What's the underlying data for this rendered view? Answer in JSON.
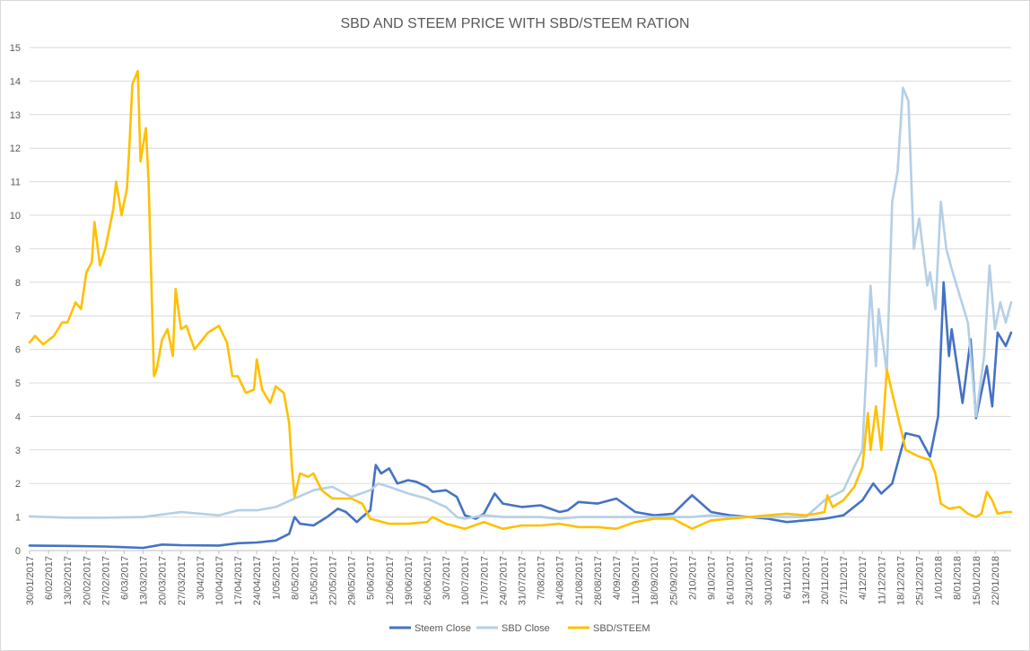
{
  "chart_data": {
    "type": "line",
    "title": "SBD AND STEEM PRICE WITH SBD/STEEM RATION",
    "xlabel": "",
    "ylabel": "",
    "ylim": [
      0,
      15
    ],
    "yticks": [
      0,
      1,
      2,
      3,
      4,
      5,
      6,
      7,
      8,
      9,
      10,
      11,
      12,
      13,
      14,
      15
    ],
    "xlim": [
      "30/01/2017",
      "28/01/2018"
    ],
    "xtick_labels": [
      "30/01/2017",
      "6/02/2017",
      "13/02/2017",
      "20/02/2017",
      "27/02/2017",
      "6/03/2017",
      "13/03/2017",
      "20/03/2017",
      "27/03/2017",
      "3/04/2017",
      "10/04/2017",
      "17/04/2017",
      "24/04/2017",
      "1/05/2017",
      "8/05/2017",
      "15/05/2017",
      "22/05/2017",
      "29/05/2017",
      "5/06/2017",
      "12/06/2017",
      "19/06/2017",
      "26/06/2017",
      "3/07/2017",
      "10/07/2017",
      "17/07/2017",
      "24/07/2017",
      "31/07/2017",
      "7/08/2017",
      "14/08/2017",
      "21/08/2017",
      "28/08/2017",
      "4/09/2017",
      "11/09/2017",
      "18/09/2017",
      "25/09/2017",
      "2/10/2017",
      "9/10/2017",
      "16/10/2017",
      "23/10/2017",
      "30/10/2017",
      "6/11/2017",
      "13/11/2017",
      "20/11/2017",
      "27/11/2017",
      "4/12/2017",
      "11/12/2017",
      "18/12/2017",
      "25/12/2017",
      "1/01/2018",
      "8/01/2018",
      "15/01/2018",
      "22/01/2018"
    ],
    "grid": true,
    "legend_position": "bottom",
    "series": [
      {
        "name": "Steem Close",
        "color": "#4472c4",
        "points": [
          [
            "30/01/2017",
            0.15
          ],
          [
            "13/02/2017",
            0.14
          ],
          [
            "27/02/2017",
            0.12
          ],
          [
            "13/03/2017",
            0.08
          ],
          [
            "20/03/2017",
            0.18
          ],
          [
            "27/03/2017",
            0.16
          ],
          [
            "10/04/2017",
            0.15
          ],
          [
            "17/04/2017",
            0.22
          ],
          [
            "24/04/2017",
            0.24
          ],
          [
            "1/05/2017",
            0.3
          ],
          [
            "6/05/2017",
            0.5
          ],
          [
            "8/05/2017",
            1.0
          ],
          [
            "10/05/2017",
            0.8
          ],
          [
            "15/05/2017",
            0.75
          ],
          [
            "20/05/2017",
            1.0
          ],
          [
            "24/05/2017",
            1.25
          ],
          [
            "27/05/2017",
            1.15
          ],
          [
            "31/05/2017",
            0.85
          ],
          [
            "2/06/2017",
            1.0
          ],
          [
            "5/06/2017",
            1.2
          ],
          [
            "7/06/2017",
            2.55
          ],
          [
            "9/06/2017",
            2.3
          ],
          [
            "12/06/2017",
            2.45
          ],
          [
            "15/06/2017",
            2.0
          ],
          [
            "19/06/2017",
            2.1
          ],
          [
            "22/06/2017",
            2.05
          ],
          [
            "26/06/2017",
            1.9
          ],
          [
            "28/06/2017",
            1.75
          ],
          [
            "3/07/2017",
            1.8
          ],
          [
            "7/07/2017",
            1.6
          ],
          [
            "10/07/2017",
            1.05
          ],
          [
            "14/07/2017",
            0.95
          ],
          [
            "17/07/2017",
            1.1
          ],
          [
            "21/07/2017",
            1.7
          ],
          [
            "24/07/2017",
            1.4
          ],
          [
            "31/07/2017",
            1.3
          ],
          [
            "7/08/2017",
            1.35
          ],
          [
            "14/08/2017",
            1.15
          ],
          [
            "17/08/2017",
            1.2
          ],
          [
            "21/08/2017",
            1.45
          ],
          [
            "28/08/2017",
            1.4
          ],
          [
            "4/09/2017",
            1.55
          ],
          [
            "11/09/2017",
            1.15
          ],
          [
            "18/09/2017",
            1.05
          ],
          [
            "25/09/2017",
            1.1
          ],
          [
            "2/10/2017",
            1.65
          ],
          [
            "9/10/2017",
            1.15
          ],
          [
            "16/10/2017",
            1.05
          ],
          [
            "23/10/2017",
            1.0
          ],
          [
            "30/10/2017",
            0.95
          ],
          [
            "6/11/2017",
            0.85
          ],
          [
            "13/11/2017",
            0.9
          ],
          [
            "20/11/2017",
            0.95
          ],
          [
            "27/11/2017",
            1.05
          ],
          [
            "4/12/2017",
            1.5
          ],
          [
            "8/12/2017",
            2.0
          ],
          [
            "11/12/2017",
            1.7
          ],
          [
            "15/12/2017",
            2.0
          ],
          [
            "20/12/2017",
            3.5
          ],
          [
            "25/12/2017",
            3.4
          ],
          [
            "29/12/2017",
            2.8
          ],
          [
            "1/01/2018",
            4.0
          ],
          [
            "3/01/2018",
            8.0
          ],
          [
            "5/01/2018",
            5.8
          ],
          [
            "6/01/2018",
            6.6
          ],
          [
            "10/01/2018",
            4.4
          ],
          [
            "13/01/2018",
            6.3
          ],
          [
            "15/01/2018",
            3.95
          ],
          [
            "19/01/2018",
            5.5
          ],
          [
            "21/01/2018",
            4.3
          ],
          [
            "23/01/2018",
            6.5
          ],
          [
            "26/01/2018",
            6.1
          ],
          [
            "28/01/2018",
            6.5
          ]
        ]
      },
      {
        "name": "SBD Close",
        "color": "#b4cfe6",
        "points": [
          [
            "30/01/2017",
            1.02
          ],
          [
            "13/02/2017",
            0.98
          ],
          [
            "27/02/2017",
            0.98
          ],
          [
            "13/03/2017",
            1.0
          ],
          [
            "27/03/2017",
            1.15
          ],
          [
            "10/04/2017",
            1.05
          ],
          [
            "17/04/2017",
            1.2
          ],
          [
            "24/04/2017",
            1.2
          ],
          [
            "1/05/2017",
            1.3
          ],
          [
            "8/05/2017",
            1.55
          ],
          [
            "15/05/2017",
            1.8
          ],
          [
            "22/05/2017",
            1.9
          ],
          [
            "29/05/2017",
            1.6
          ],
          [
            "5/06/2017",
            1.8
          ],
          [
            "8/06/2017",
            2.0
          ],
          [
            "12/06/2017",
            1.9
          ],
          [
            "19/06/2017",
            1.7
          ],
          [
            "26/06/2017",
            1.55
          ],
          [
            "3/07/2017",
            1.3
          ],
          [
            "7/07/2017",
            1.0
          ],
          [
            "10/07/2017",
            0.95
          ],
          [
            "17/07/2017",
            1.05
          ],
          [
            "24/07/2017",
            1.0
          ],
          [
            "31/07/2017",
            1.0
          ],
          [
            "7/08/2017",
            1.0
          ],
          [
            "14/08/2017",
            0.95
          ],
          [
            "21/08/2017",
            1.0
          ],
          [
            "28/08/2017",
            1.0
          ],
          [
            "4/09/2017",
            1.0
          ],
          [
            "11/09/2017",
            1.0
          ],
          [
            "18/09/2017",
            1.0
          ],
          [
            "25/09/2017",
            1.0
          ],
          [
            "2/10/2017",
            1.0
          ],
          [
            "9/10/2017",
            1.05
          ],
          [
            "16/10/2017",
            1.0
          ],
          [
            "23/10/2017",
            1.0
          ],
          [
            "30/10/2017",
            1.0
          ],
          [
            "6/11/2017",
            1.0
          ],
          [
            "13/11/2017",
            1.0
          ],
          [
            "20/11/2017",
            1.5
          ],
          [
            "27/11/2017",
            1.8
          ],
          [
            "1/12/2017",
            2.5
          ],
          [
            "4/12/2017",
            3.0
          ],
          [
            "7/12/2017",
            7.9
          ],
          [
            "9/12/2017",
            5.5
          ],
          [
            "10/12/2017",
            7.2
          ],
          [
            "13/12/2017",
            5.3
          ],
          [
            "15/12/2017",
            10.4
          ],
          [
            "17/12/2017",
            11.3
          ],
          [
            "19/12/2017",
            13.8
          ],
          [
            "21/12/2017",
            13.4
          ],
          [
            "23/12/2017",
            9.0
          ],
          [
            "25/12/2017",
            9.9
          ],
          [
            "28/12/2017",
            7.9
          ],
          [
            "29/12/2017",
            8.3
          ],
          [
            "31/12/2017",
            7.2
          ],
          [
            "2/01/2018",
            10.4
          ],
          [
            "4/01/2018",
            9.0
          ],
          [
            "6/01/2018",
            8.4
          ],
          [
            "9/01/2018",
            7.6
          ],
          [
            "12/01/2018",
            6.8
          ],
          [
            "15/01/2018",
            4.0
          ],
          [
            "18/01/2018",
            5.8
          ],
          [
            "20/01/2018",
            8.5
          ],
          [
            "22/01/2018",
            6.6
          ],
          [
            "24/01/2018",
            7.4
          ],
          [
            "26/01/2018",
            6.8
          ],
          [
            "28/01/2018",
            7.4
          ]
        ]
      },
      {
        "name": "SBD/STEEM",
        "color": "#ffc000",
        "points": [
          [
            "30/01/2017",
            6.2
          ],
          [
            "1/02/2017",
            6.4
          ],
          [
            "4/02/2017",
            6.15
          ],
          [
            "8/02/2017",
            6.4
          ],
          [
            "11/02/2017",
            6.8
          ],
          [
            "13/02/2017",
            6.8
          ],
          [
            "16/02/2017",
            7.4
          ],
          [
            "18/02/2017",
            7.2
          ],
          [
            "20/02/2017",
            8.3
          ],
          [
            "22/02/2017",
            8.6
          ],
          [
            "23/02/2017",
            9.8
          ],
          [
            "25/02/2017",
            8.5
          ],
          [
            "27/02/2017",
            9.0
          ],
          [
            "2/03/2017",
            10.2
          ],
          [
            "3/03/2017",
            11.0
          ],
          [
            "5/03/2017",
            10.0
          ],
          [
            "7/03/2017",
            10.8
          ],
          [
            "8/03/2017",
            12.2
          ],
          [
            "9/03/2017",
            13.9
          ],
          [
            "11/03/2017",
            14.3
          ],
          [
            "12/03/2017",
            11.6
          ],
          [
            "14/03/2017",
            12.6
          ],
          [
            "15/03/2017",
            11.0
          ],
          [
            "17/03/2017",
            5.2
          ],
          [
            "18/03/2017",
            5.4
          ],
          [
            "20/03/2017",
            6.3
          ],
          [
            "22/03/2017",
            6.6
          ],
          [
            "24/03/2017",
            5.8
          ],
          [
            "25/03/2017",
            7.8
          ],
          [
            "27/03/2017",
            6.6
          ],
          [
            "29/03/2017",
            6.7
          ],
          [
            "1/04/2017",
            6.0
          ],
          [
            "3/04/2017",
            6.2
          ],
          [
            "6/04/2017",
            6.5
          ],
          [
            "10/04/2017",
            6.7
          ],
          [
            "13/04/2017",
            6.2
          ],
          [
            "15/04/2017",
            5.2
          ],
          [
            "17/04/2017",
            5.2
          ],
          [
            "20/04/2017",
            4.7
          ],
          [
            "23/04/2017",
            4.8
          ],
          [
            "24/04/2017",
            5.7
          ],
          [
            "26/04/2017",
            4.8
          ],
          [
            "29/04/2017",
            4.4
          ],
          [
            "1/05/2017",
            4.9
          ],
          [
            "4/05/2017",
            4.7
          ],
          [
            "6/05/2017",
            3.8
          ],
          [
            "7/05/2017",
            2.5
          ],
          [
            "8/05/2017",
            1.6
          ],
          [
            "10/05/2017",
            2.3
          ],
          [
            "13/05/2017",
            2.2
          ],
          [
            "15/05/2017",
            2.3
          ],
          [
            "18/05/2017",
            1.8
          ],
          [
            "22/05/2017",
            1.55
          ],
          [
            "29/05/2017",
            1.55
          ],
          [
            "2/06/2017",
            1.4
          ],
          [
            "5/06/2017",
            0.95
          ],
          [
            "12/06/2017",
            0.8
          ],
          [
            "19/06/2017",
            0.8
          ],
          [
            "26/06/2017",
            0.85
          ],
          [
            "28/06/2017",
            1.0
          ],
          [
            "3/07/2017",
            0.8
          ],
          [
            "10/07/2017",
            0.65
          ],
          [
            "17/07/2017",
            0.85
          ],
          [
            "24/07/2017",
            0.65
          ],
          [
            "31/07/2017",
            0.75
          ],
          [
            "7/08/2017",
            0.75
          ],
          [
            "14/08/2017",
            0.8
          ],
          [
            "21/08/2017",
            0.7
          ],
          [
            "28/08/2017",
            0.7
          ],
          [
            "4/09/2017",
            0.65
          ],
          [
            "11/09/2017",
            0.85
          ],
          [
            "18/09/2017",
            0.95
          ],
          [
            "25/09/2017",
            0.95
          ],
          [
            "2/10/2017",
            0.65
          ],
          [
            "9/10/2017",
            0.9
          ],
          [
            "16/10/2017",
            0.95
          ],
          [
            "23/10/2017",
            1.0
          ],
          [
            "30/10/2017",
            1.05
          ],
          [
            "6/11/2017",
            1.1
          ],
          [
            "13/11/2017",
            1.05
          ],
          [
            "17/11/2017",
            1.1
          ],
          [
            "20/11/2017",
            1.15
          ],
          [
            "21/11/2017",
            1.65
          ],
          [
            "23/11/2017",
            1.3
          ],
          [
            "27/11/2017",
            1.5
          ],
          [
            "1/12/2017",
            1.9
          ],
          [
            "4/12/2017",
            2.5
          ],
          [
            "6/12/2017",
            4.1
          ],
          [
            "7/12/2017",
            3.0
          ],
          [
            "9/12/2017",
            4.3
          ],
          [
            "11/12/2017",
            3.0
          ],
          [
            "13/12/2017",
            5.4
          ],
          [
            "15/12/2017",
            4.7
          ],
          [
            "18/12/2017",
            3.7
          ],
          [
            "20/12/2017",
            3.0
          ],
          [
            "25/12/2017",
            2.8
          ],
          [
            "29/12/2017",
            2.7
          ],
          [
            "31/12/2017",
            2.3
          ],
          [
            "2/01/2018",
            1.4
          ],
          [
            "5/01/2018",
            1.25
          ],
          [
            "9/01/2018",
            1.3
          ],
          [
            "12/01/2018",
            1.1
          ],
          [
            "15/01/2018",
            1.0
          ],
          [
            "17/01/2018",
            1.1
          ],
          [
            "19/01/2018",
            1.75
          ],
          [
            "21/01/2018",
            1.5
          ],
          [
            "23/01/2018",
            1.1
          ],
          [
            "26/01/2018",
            1.15
          ],
          [
            "28/01/2018",
            1.15
          ]
        ]
      }
    ]
  }
}
